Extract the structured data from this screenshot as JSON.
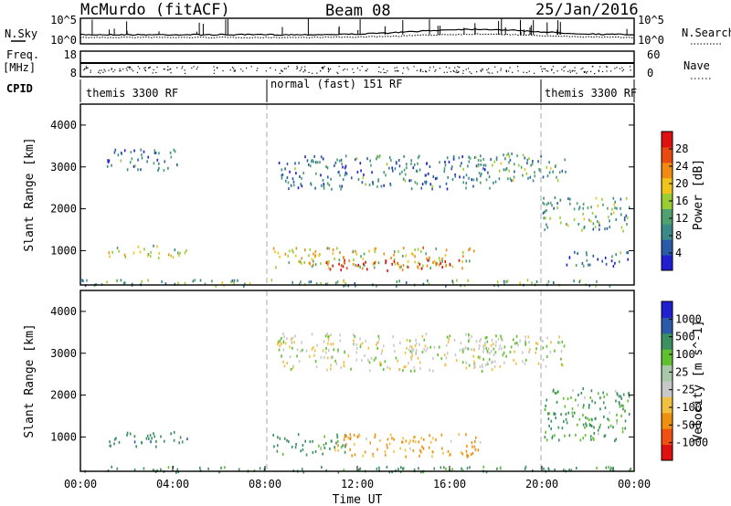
{
  "header": {
    "station": "McMurdo (fitACF)",
    "beam": "Beam 08",
    "date": "25/Jan/2016"
  },
  "side_labels": {
    "nsky": "N.Sky",
    "freq": "Freq.",
    "mhz": "[MHz]",
    "cpid": "CPID",
    "nsearch": "N.Search",
    "nave": "Nave"
  },
  "strip_ticks": {
    "noise_left": [
      "10^5",
      "10^0"
    ],
    "noise_right": [
      "10^5",
      "10^0"
    ],
    "freq_left": [
      "18",
      "8"
    ],
    "nave_right": [
      "60",
      "0"
    ]
  },
  "cpid_segments": [
    {
      "label": "themis 3300 RF",
      "start": 0,
      "end": 8
    },
    {
      "label": "normal (fast) 151 RF",
      "start": 8,
      "end": 20
    },
    {
      "label": "themis 3300 RF",
      "start": 20,
      "end": 24
    }
  ],
  "colors": {
    "power": [
      "#2020d0",
      "#2a5aa8",
      "#3a8a8a",
      "#50a070",
      "#9acd32",
      "#f0c419",
      "#f08a10",
      "#e84a10",
      "#e01010"
    ],
    "velocity": [
      "#e01010",
      "#f05010",
      "#f09010",
      "#f0c040",
      "#c8c8c8",
      "#a8c8a8",
      "#60c030",
      "#3a9060",
      "#2a5aa8",
      "#2020d0"
    ]
  },
  "chart_data": [
    {
      "type": "heatmap",
      "name": "power",
      "xlabel": "",
      "ylabel": "Slant Range [km]",
      "xlim": [
        0,
        24
      ],
      "ylim": [
        180,
        4500
      ],
      "yticks": [
        "1000",
        "2000",
        "3000",
        "4000"
      ],
      "yticks_values": [
        1000,
        2000,
        3000,
        4000
      ],
      "colorbar": {
        "label": "Power [dB]",
        "range": [
          0,
          32
        ],
        "ticks": [
          "4",
          "8",
          "12",
          "16",
          "20",
          "24",
          "28"
        ],
        "ticks_values": [
          4,
          8,
          12,
          16,
          20,
          24,
          28
        ]
      },
      "regions": [
        {
          "t0": 1.0,
          "t1": 4.2,
          "r0": 2950,
          "r1": 3450,
          "power": 8
        },
        {
          "t0": 1.2,
          "t1": 4.6,
          "r0": 850,
          "r1": 1150,
          "power": 16
        },
        {
          "t0": 8.3,
          "t1": 17.2,
          "r0": 600,
          "r1": 1100,
          "power": 18
        },
        {
          "t0": 10.5,
          "t1": 16.5,
          "r0": 550,
          "r1": 800,
          "power": 26
        },
        {
          "t0": 8.5,
          "t1": 18.0,
          "r0": 2500,
          "r1": 3300,
          "power": 8
        },
        {
          "t0": 17.0,
          "t1": 21.0,
          "r0": 2700,
          "r1": 3350,
          "power": 12
        },
        {
          "t0": 20.0,
          "t1": 23.8,
          "r0": 1500,
          "r1": 2300,
          "power": 12
        },
        {
          "t0": 21.0,
          "t1": 23.8,
          "r0": 650,
          "r1": 1000,
          "power": 8
        },
        {
          "t0": 0.0,
          "t1": 24.0,
          "r0": 180,
          "r1": 330,
          "power": 12
        }
      ]
    },
    {
      "type": "heatmap",
      "name": "velocity",
      "xlabel": "Time UT",
      "ylabel": "Slant Range [km]",
      "xlim": [
        0,
        24
      ],
      "ylim": [
        180,
        4500
      ],
      "xticks": [
        "00:00",
        "04:00",
        "08:00",
        "12:00",
        "16:00",
        "20:00",
        "00:00"
      ],
      "xticks_values": [
        0,
        4,
        8,
        12,
        16,
        20,
        24
      ],
      "yticks": [
        "1000",
        "2000",
        "3000",
        "4000"
      ],
      "yticks_values": [
        1000,
        2000,
        3000,
        4000
      ],
      "colorbar": {
        "label": "Velocity [m s^-1]",
        "ticks": [
          "1000",
          "500",
          "100",
          "25",
          "-25",
          "-100",
          "-500",
          "-1000"
        ],
        "ticks_values": [
          1000,
          500,
          100,
          25,
          -25,
          -100,
          -500,
          -1000
        ]
      },
      "regions": [
        {
          "t0": 1.2,
          "t1": 4.6,
          "r0": 800,
          "r1": 1150,
          "velocity": 300
        },
        {
          "t0": 8.3,
          "t1": 11.5,
          "r0": 600,
          "r1": 1100,
          "velocity": 150
        },
        {
          "t0": 11.0,
          "t1": 17.3,
          "r0": 550,
          "r1": 1100,
          "velocity": -120
        },
        {
          "t0": 8.5,
          "t1": 18.0,
          "r0": 2600,
          "r1": 3500,
          "velocity": 0
        },
        {
          "t0": 17.0,
          "t1": 21.0,
          "r0": 2700,
          "r1": 3450,
          "velocity": 10
        },
        {
          "t0": 20.0,
          "t1": 23.8,
          "r0": 900,
          "r1": 2200,
          "velocity": 150
        },
        {
          "t0": 0.0,
          "t1": 24.0,
          "r0": 180,
          "r1": 320,
          "velocity": 200
        }
      ]
    }
  ]
}
